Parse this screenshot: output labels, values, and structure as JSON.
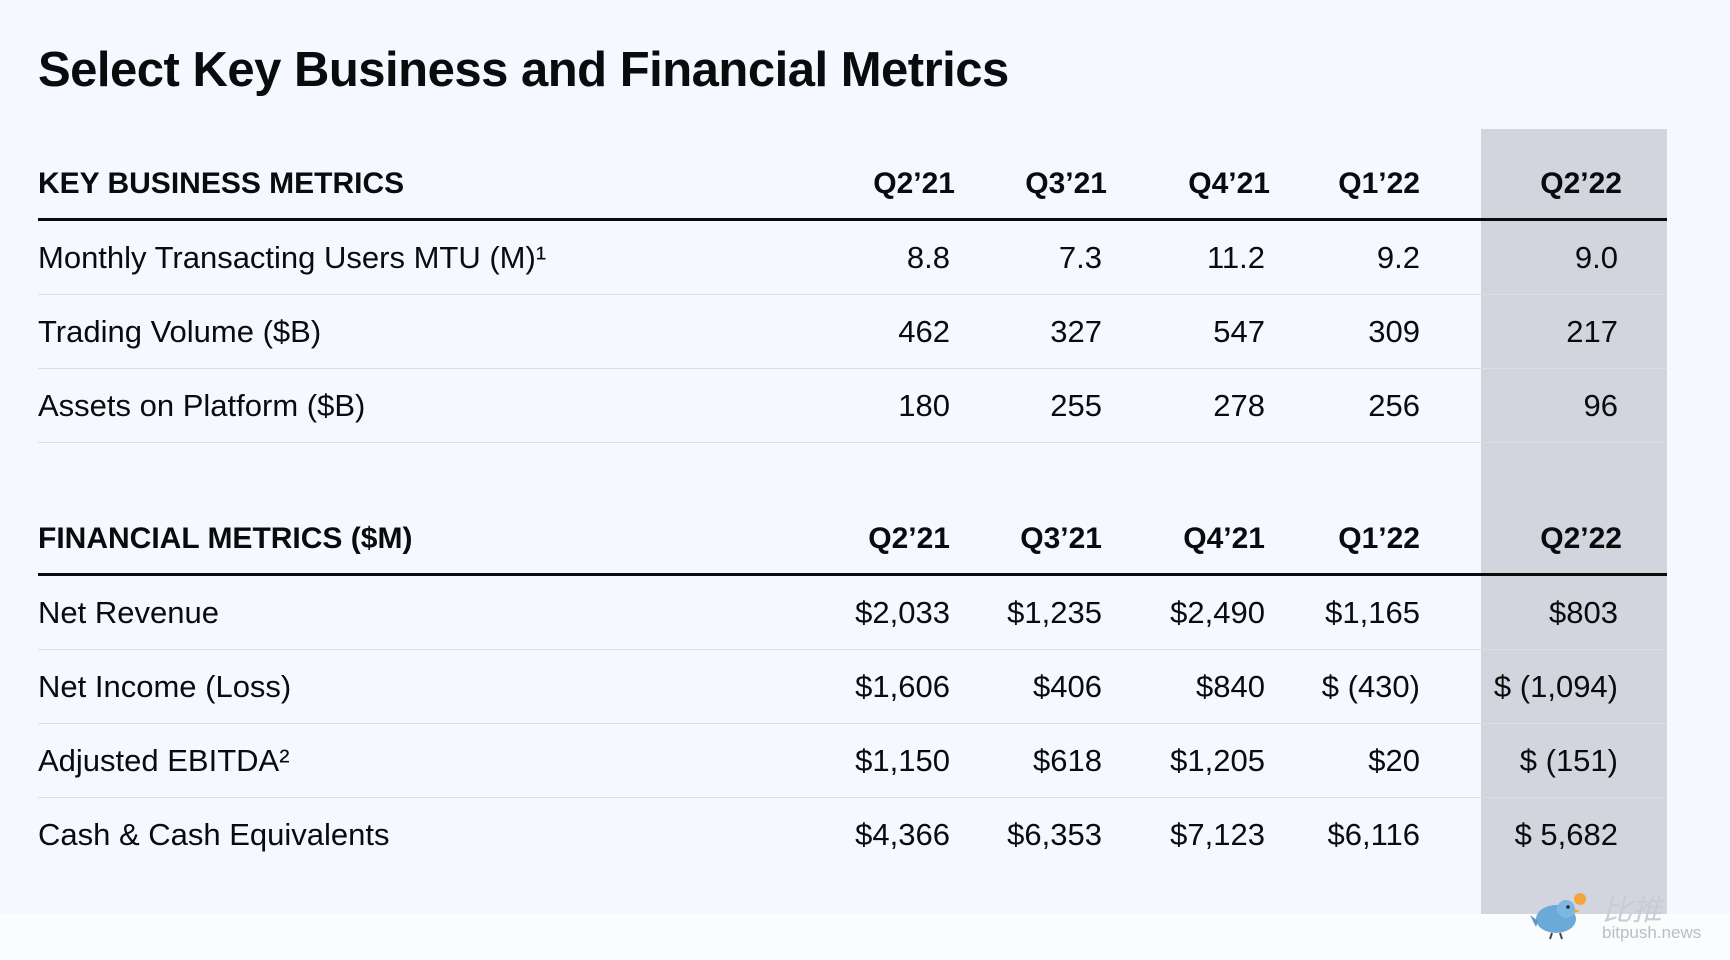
{
  "title": "Select Key Business and Financial Metrics",
  "key_business": {
    "header": "KEY BUSINESS METRICS",
    "columns": [
      "Q2’21",
      "Q3’21",
      "Q4’21",
      "Q1’22",
      "Q2’22"
    ],
    "rows": [
      {
        "label": "Monthly Transacting Users MTU (M)¹",
        "values": [
          "8.8",
          "7.3",
          "11.2",
          "9.2",
          "9.0"
        ]
      },
      {
        "label": "Trading Volume ($B)",
        "values": [
          "462",
          "327",
          "547",
          "309",
          "217"
        ]
      },
      {
        "label": "Assets on Platform ($B)",
        "values": [
          "180",
          "255",
          "278",
          "256",
          "96"
        ]
      }
    ]
  },
  "financial": {
    "header": "FINANCIAL METRICS ($M)",
    "columns": [
      "Q2’21",
      "Q3’21",
      "Q4’21",
      "Q1’22",
      "Q2’22"
    ],
    "rows": [
      {
        "label": "Net Revenue",
        "values": [
          "$2,033",
          "$1,235",
          "$2,490",
          "$1,165",
          "$803"
        ]
      },
      {
        "label": "Net Income (Loss)",
        "values": [
          "$1,606",
          "$406",
          "$840",
          "$ (430)",
          "$ (1,094)"
        ]
      },
      {
        "label": "Adjusted EBITDA²",
        "values": [
          "$1,150",
          "$618",
          "$1,205",
          "$20",
          "$  (151)"
        ]
      },
      {
        "label": "Cash & Cash Equivalents",
        "values": [
          "$4,366",
          "$6,353",
          "$7,123",
          "$6,116",
          "$  5,682"
        ]
      }
    ]
  },
  "watermark": {
    "cn": "比推",
    "en": "bitpush.news",
    "icon": "bird-logo-icon"
  },
  "colors": {
    "background": "#f5f8ff",
    "highlight": "#d2d5dd",
    "text": "#0a0b0d"
  }
}
